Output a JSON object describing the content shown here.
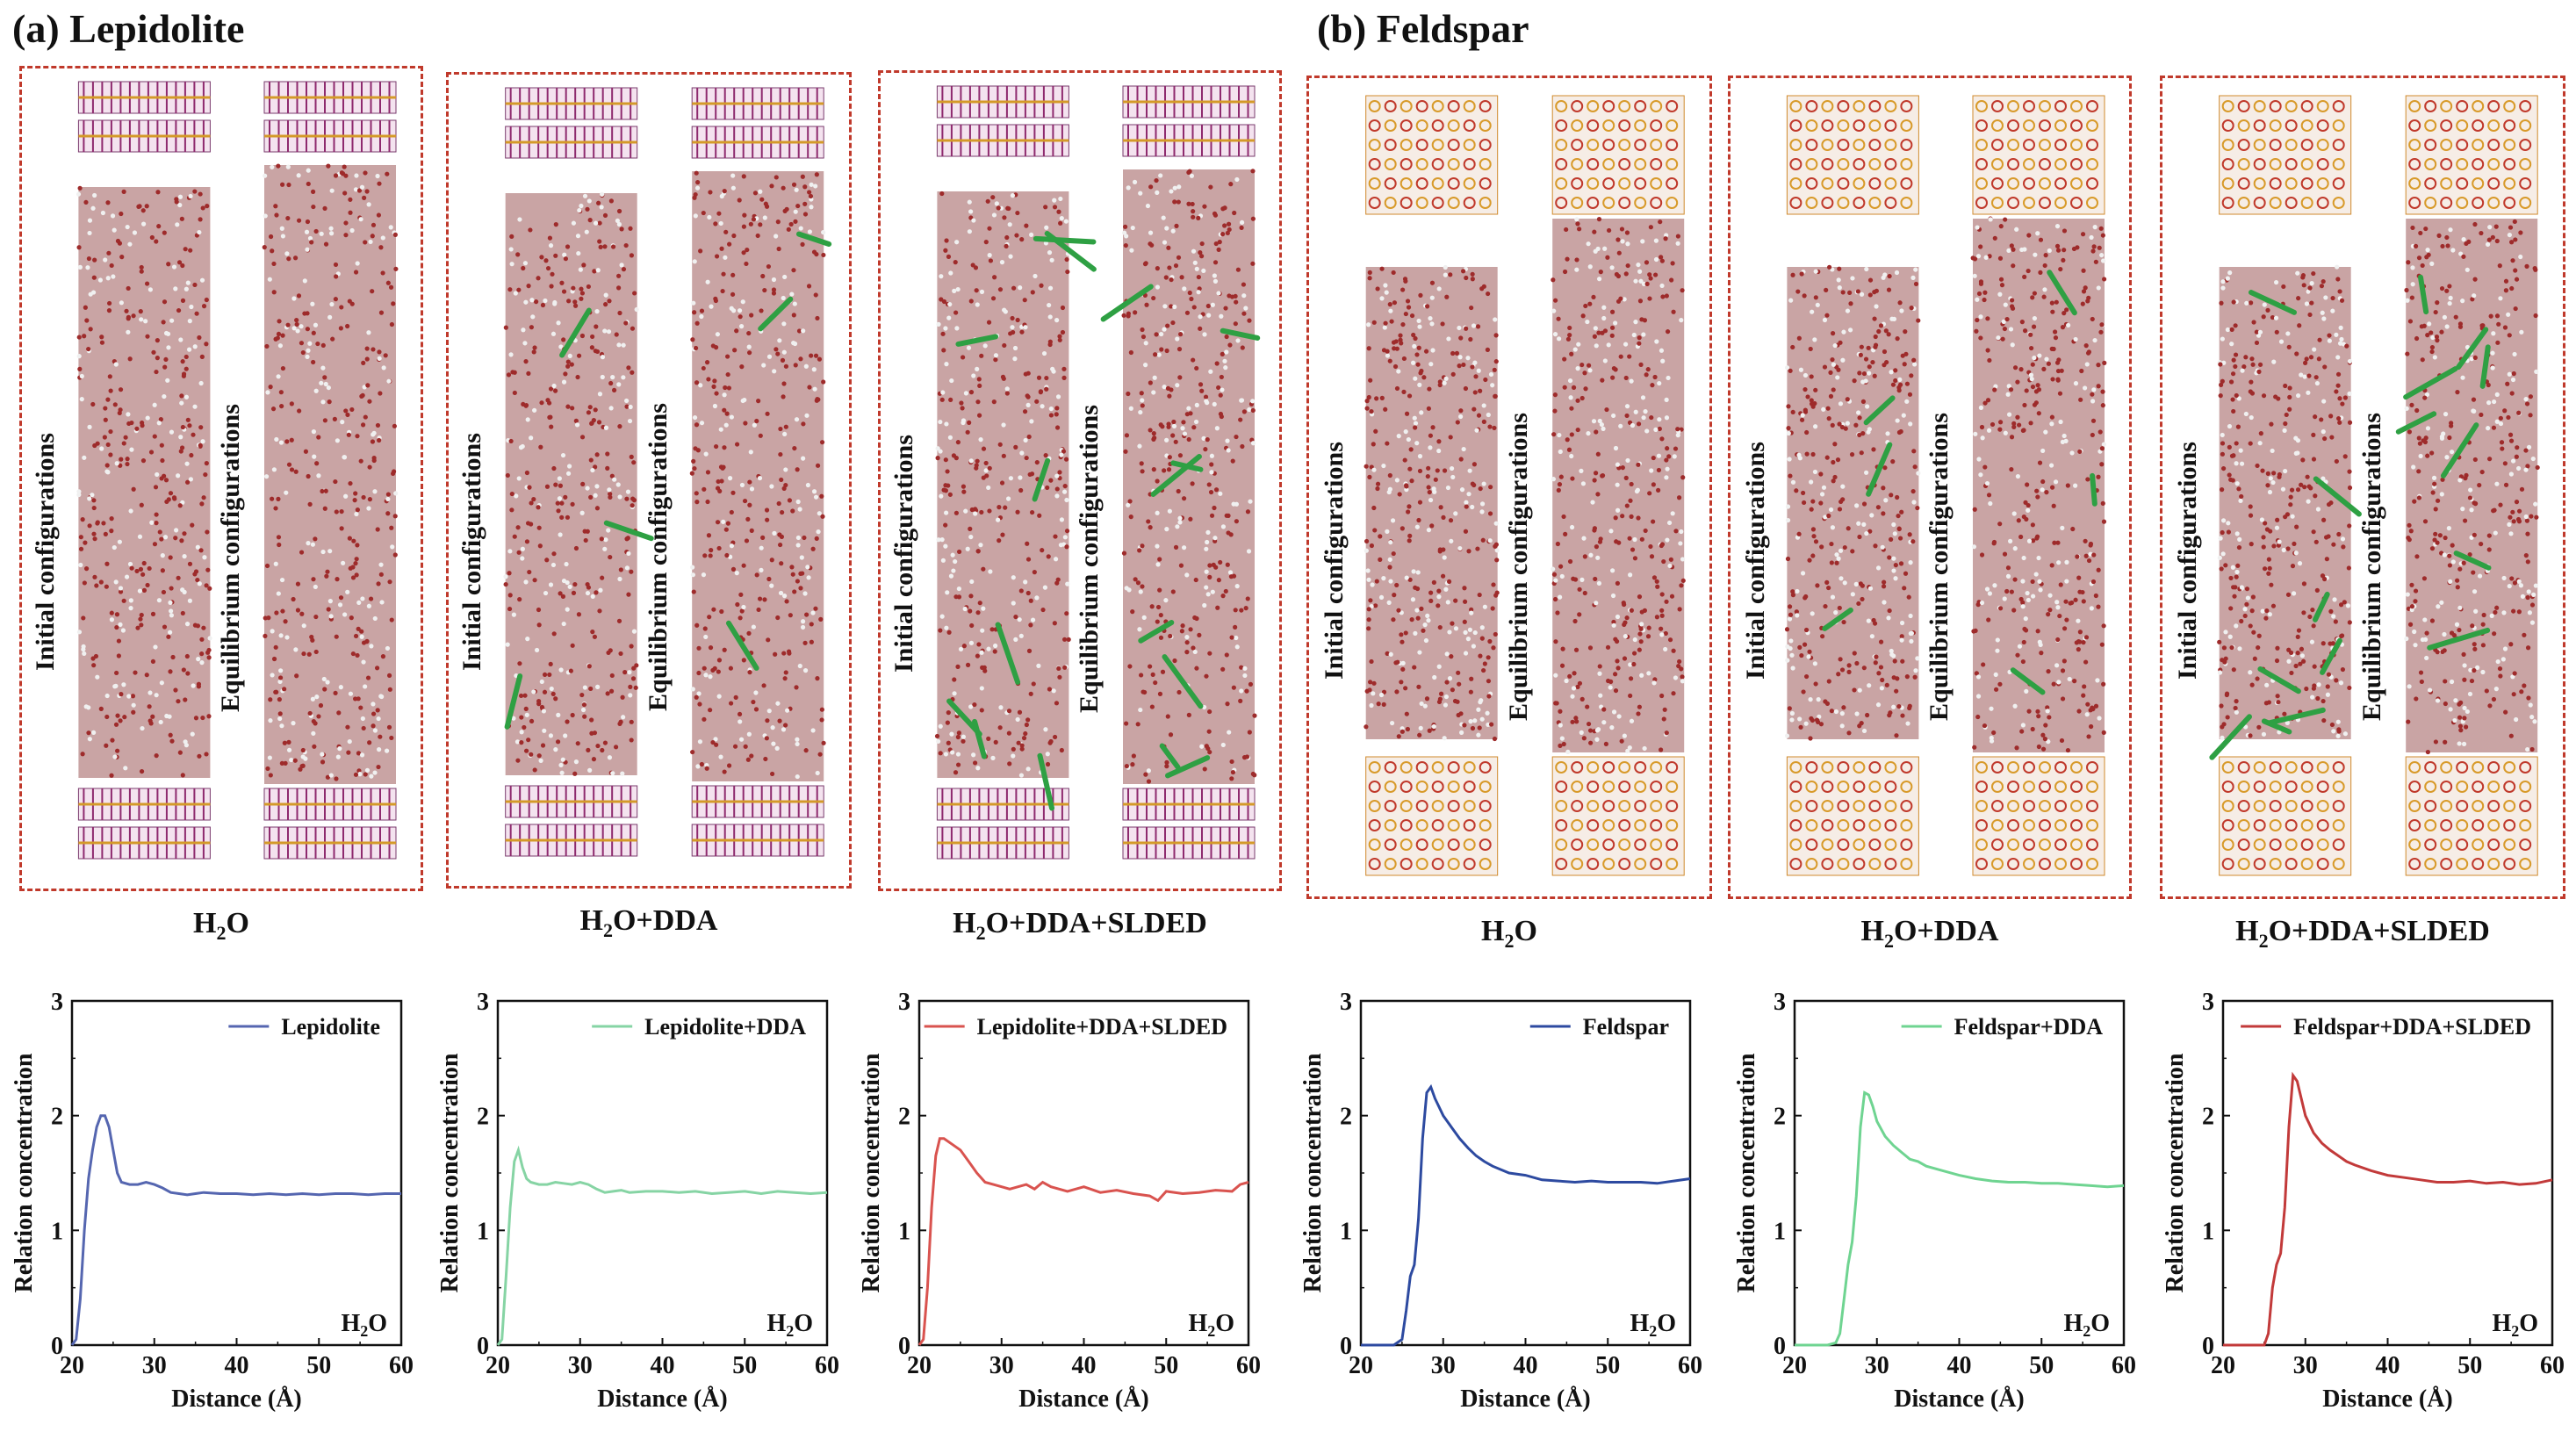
{
  "panels": {
    "a": {
      "title": "(a) Lepidolite"
    },
    "b": {
      "title": "(b) Feldspar"
    }
  },
  "simulations": [
    {
      "label_main": "H",
      "label_sub": "2",
      "label_rest": "O",
      "config_left": "Initial  configurations",
      "config_right": "Equilibrium  configurations",
      "mineral": "lepidolite",
      "dda": false,
      "slded": false
    },
    {
      "label_main": "H",
      "label_sub": "2",
      "label_rest": "O+DDA",
      "config_left": "Initial  configurations",
      "config_right": "Equilibrium  configurations",
      "mineral": "lepidolite",
      "dda": true,
      "slded": false
    },
    {
      "label_main": "H",
      "label_sub": "2",
      "label_rest": "O+DDA+SLDED",
      "config_left": "Initial  configurations",
      "config_right": "Equilibrium  configurations",
      "mineral": "lepidolite",
      "dda": true,
      "slded": true
    },
    {
      "label_main": "H",
      "label_sub": "2",
      "label_rest": "O",
      "config_left": "Initial  configurations",
      "config_right": "Equilibrium  configurations",
      "mineral": "feldspar",
      "dda": false,
      "slded": false
    },
    {
      "label_main": "H",
      "label_sub": "2",
      "label_rest": "O+DDA",
      "config_left": "Initial  configurations",
      "config_right": "Equilibrium  configurations",
      "mineral": "feldspar",
      "dda": true,
      "slded": false
    },
    {
      "label_main": "H",
      "label_sub": "2",
      "label_rest": "O+DDA+SLDED",
      "config_left": "Initial  configurations",
      "config_right": "Equilibrium  configurations",
      "mineral": "feldspar",
      "dda": true,
      "slded": true
    }
  ],
  "colors": {
    "frame": "#c0392b",
    "water": "#b03a3a",
    "dda": "#2ea043",
    "lepidolite": "#1f5fa8",
    "lepidolite_dda": "#7ccf9a",
    "lepidolite_slded": "#d04848",
    "feldspar": "#1c3f94",
    "feldspar_dda": "#5ecf86",
    "feldspar_slded": "#c2272d"
  },
  "chart_data": [
    {
      "type": "line",
      "legend": "Lepidolite",
      "color": "#5566b0",
      "ylabel": "Relation concentration",
      "xlabel": "Distance (Å)",
      "annotation_main": "H",
      "annotation_sub": "2",
      "annotation_rest": "O",
      "xlim": [
        20,
        60
      ],
      "ylim": [
        0,
        3
      ],
      "xticks": [
        "20",
        "30",
        "40",
        "50",
        "60"
      ],
      "yticks": [
        "0",
        "1",
        "2",
        "3"
      ],
      "x": [
        20,
        20.5,
        21,
        21.5,
        22,
        22.5,
        23,
        23.5,
        24,
        24.5,
        25,
        25.5,
        26,
        27,
        28,
        29,
        30,
        31,
        32,
        33,
        34,
        35,
        36,
        38,
        40,
        42,
        44,
        46,
        48,
        50,
        52,
        54,
        56,
        58,
        60
      ],
      "y": [
        0,
        0.05,
        0.4,
        1.0,
        1.45,
        1.7,
        1.9,
        2.0,
        2.0,
        1.9,
        1.7,
        1.5,
        1.42,
        1.4,
        1.4,
        1.42,
        1.4,
        1.37,
        1.33,
        1.32,
        1.31,
        1.32,
        1.33,
        1.32,
        1.32,
        1.31,
        1.32,
        1.31,
        1.32,
        1.31,
        1.32,
        1.32,
        1.31,
        1.32,
        1.32
      ]
    },
    {
      "type": "line",
      "legend": "Lepidolite+DDA",
      "color": "#86d4a4",
      "ylabel": "Relation concentration",
      "xlabel": "Distance (Å)",
      "annotation_main": "H",
      "annotation_sub": "2",
      "annotation_rest": "O",
      "xlim": [
        20,
        60
      ],
      "ylim": [
        0,
        3
      ],
      "xticks": [
        "20",
        "30",
        "40",
        "50",
        "60"
      ],
      "yticks": [
        "0",
        "1",
        "2",
        "3"
      ],
      "x": [
        20,
        20.5,
        21,
        21.5,
        22,
        22.5,
        23,
        23.5,
        24,
        25,
        26,
        27,
        28,
        29,
        30,
        31,
        32,
        33,
        34,
        35,
        36,
        38,
        40,
        42,
        44,
        46,
        48,
        50,
        52,
        54,
        56,
        58,
        60
      ],
      "y": [
        0,
        0.05,
        0.6,
        1.2,
        1.6,
        1.7,
        1.55,
        1.45,
        1.42,
        1.4,
        1.4,
        1.42,
        1.41,
        1.4,
        1.42,
        1.4,
        1.36,
        1.33,
        1.34,
        1.35,
        1.33,
        1.34,
        1.34,
        1.33,
        1.34,
        1.32,
        1.33,
        1.34,
        1.32,
        1.34,
        1.33,
        1.32,
        1.33
      ]
    },
    {
      "type": "line",
      "legend": "Lepidolite+DDA+SLDED",
      "color": "#d9534f",
      "ylabel": "Relation concentration",
      "xlabel": "Distance (Å)",
      "annotation_main": "H",
      "annotation_sub": "2",
      "annotation_rest": "O",
      "xlim": [
        20,
        60
      ],
      "ylim": [
        0,
        3
      ],
      "xticks": [
        "20",
        "30",
        "40",
        "50",
        "60"
      ],
      "yticks": [
        "0",
        "1",
        "2",
        "3"
      ],
      "x": [
        20,
        20.5,
        21,
        21.5,
        22,
        22.5,
        23,
        24,
        25,
        26,
        27,
        28,
        29,
        30,
        31,
        32,
        33,
        34,
        35,
        36,
        37,
        38,
        40,
        42,
        44,
        46,
        48,
        49,
        50,
        52,
        54,
        56,
        58,
        59,
        60
      ],
      "y": [
        0,
        0.05,
        0.5,
        1.2,
        1.65,
        1.8,
        1.8,
        1.75,
        1.7,
        1.6,
        1.5,
        1.42,
        1.4,
        1.38,
        1.36,
        1.38,
        1.4,
        1.36,
        1.42,
        1.38,
        1.36,
        1.34,
        1.38,
        1.33,
        1.35,
        1.32,
        1.3,
        1.26,
        1.34,
        1.32,
        1.33,
        1.35,
        1.34,
        1.4,
        1.42
      ]
    },
    {
      "type": "line",
      "legend": "Feldspar",
      "color": "#2d4aa0",
      "ylabel": "Relation concentration",
      "xlabel": "Distance (Å)",
      "annotation_main": "H",
      "annotation_sub": "2",
      "annotation_rest": "O",
      "xlim": [
        20,
        60
      ],
      "ylim": [
        0,
        3
      ],
      "xticks": [
        "20",
        "30",
        "40",
        "50",
        "60"
      ],
      "yticks": [
        "0",
        "1",
        "2",
        "3"
      ],
      "x": [
        20,
        21,
        22,
        23,
        24,
        25,
        25.5,
        26,
        26.5,
        27,
        27.5,
        28,
        28.5,
        29,
        30,
        31,
        32,
        33,
        34,
        35,
        36,
        38,
        40,
        42,
        44,
        46,
        48,
        50,
        52,
        54,
        56,
        58,
        60
      ],
      "y": [
        0,
        0,
        0,
        0,
        0,
        0.05,
        0.3,
        0.6,
        0.7,
        1.1,
        1.8,
        2.2,
        2.25,
        2.15,
        2.0,
        1.9,
        1.8,
        1.72,
        1.65,
        1.6,
        1.56,
        1.5,
        1.48,
        1.44,
        1.43,
        1.42,
        1.43,
        1.42,
        1.42,
        1.42,
        1.41,
        1.43,
        1.45
      ]
    },
    {
      "type": "line",
      "legend": "Feldspar+DDA",
      "color": "#6fd491",
      "ylabel": "Relation concentration",
      "xlabel": "Distance (Å)",
      "annotation_main": "H",
      "annotation_sub": "2",
      "annotation_rest": "O",
      "xlim": [
        20,
        60
      ],
      "ylim": [
        0,
        3
      ],
      "xticks": [
        "20",
        "30",
        "40",
        "50",
        "60"
      ],
      "yticks": [
        "0",
        "1",
        "2",
        "3"
      ],
      "x": [
        20,
        21,
        22,
        23,
        24,
        25,
        25.5,
        26,
        26.5,
        27,
        27.5,
        28,
        28.5,
        29,
        29.5,
        30,
        31,
        32,
        33,
        34,
        35,
        36,
        38,
        40,
        42,
        44,
        46,
        48,
        50,
        52,
        54,
        56,
        58,
        60
      ],
      "y": [
        0,
        0,
        0,
        0,
        0,
        0.02,
        0.1,
        0.4,
        0.7,
        0.9,
        1.3,
        1.9,
        2.2,
        2.18,
        2.08,
        1.95,
        1.82,
        1.74,
        1.68,
        1.62,
        1.6,
        1.56,
        1.52,
        1.48,
        1.45,
        1.43,
        1.42,
        1.42,
        1.41,
        1.41,
        1.4,
        1.39,
        1.38,
        1.39
      ]
    },
    {
      "type": "line",
      "legend": "Feldspar+DDA+SLDED",
      "color": "#c23a3a",
      "ylabel": "Relation concentration",
      "xlabel": "Distance (Å)",
      "annotation_main": "H",
      "annotation_sub": "2",
      "annotation_rest": "O",
      "xlim": [
        20,
        60
      ],
      "ylim": [
        0,
        3
      ],
      "xticks": [
        "20",
        "30",
        "40",
        "50",
        "60"
      ],
      "yticks": [
        "0",
        "1",
        "2",
        "3"
      ],
      "x": [
        20,
        21,
        22,
        23,
        24,
        25,
        25.5,
        26,
        26.5,
        27,
        27.5,
        28,
        28.5,
        29,
        29.5,
        30,
        31,
        32,
        33,
        34,
        35,
        36,
        38,
        40,
        42,
        44,
        46,
        48,
        50,
        52,
        54,
        56,
        58,
        60
      ],
      "y": [
        0,
        0,
        0,
        0,
        0,
        0,
        0.1,
        0.5,
        0.7,
        0.8,
        1.2,
        1.9,
        2.35,
        2.3,
        2.15,
        2.0,
        1.85,
        1.76,
        1.7,
        1.65,
        1.6,
        1.57,
        1.52,
        1.48,
        1.46,
        1.44,
        1.42,
        1.42,
        1.43,
        1.41,
        1.42,
        1.4,
        1.41,
        1.44
      ]
    }
  ]
}
